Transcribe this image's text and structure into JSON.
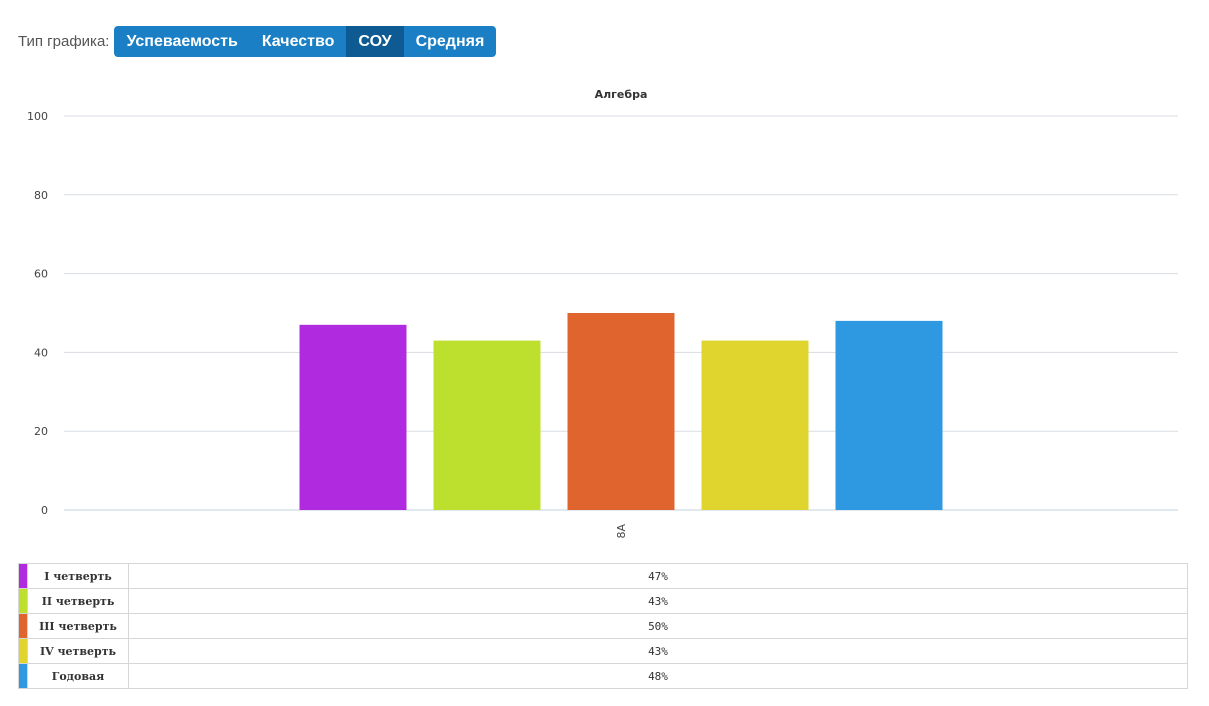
{
  "toolbar": {
    "label": "Тип графика:",
    "buttons": [
      {
        "label": "Успеваемость",
        "active": false
      },
      {
        "label": "Качество",
        "active": false
      },
      {
        "label": "СОУ",
        "active": true
      },
      {
        "label": "Средняя",
        "active": false
      }
    ]
  },
  "chart_data": {
    "type": "bar",
    "title": "Алгебра",
    "categories": [
      "8А"
    ],
    "ylim": [
      0,
      100
    ],
    "yticks": [
      0,
      20,
      40,
      60,
      80,
      100
    ],
    "grid": true,
    "series": [
      {
        "name": "I четверть",
        "values": [
          47
        ],
        "label": "47%",
        "color": "#b02be0"
      },
      {
        "name": "II четверть",
        "values": [
          43
        ],
        "label": "43%",
        "color": "#bde02e"
      },
      {
        "name": "III четверть",
        "values": [
          50
        ],
        "label": "50%",
        "color": "#e0642e"
      },
      {
        "name": "IV четверть",
        "values": [
          43
        ],
        "label": "43%",
        "color": "#e0d52e"
      },
      {
        "name": "Годовая",
        "values": [
          48
        ],
        "label": "48%",
        "color": "#2e98e0"
      }
    ]
  }
}
